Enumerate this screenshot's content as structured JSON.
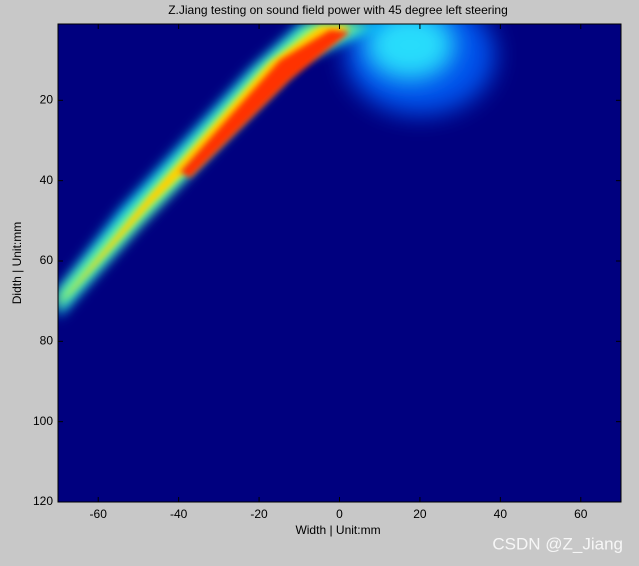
{
  "chart_data": {
    "type": "heatmap",
    "title": "Z.Jiang testing on sound field power with 45 degree left steering",
    "x_label": "Width | Unit:mm",
    "y_label": "Didth | Unit:mm",
    "xlim": [
      -70,
      70
    ],
    "xticks": [
      -60,
      -40,
      -20,
      0,
      20,
      40,
      60
    ],
    "ylim": [
      1,
      120
    ],
    "yticks": [
      20,
      40,
      60,
      80,
      100,
      120
    ],
    "y_reversed": true,
    "watermark": "CSDN @Z_Jiang"
  }
}
